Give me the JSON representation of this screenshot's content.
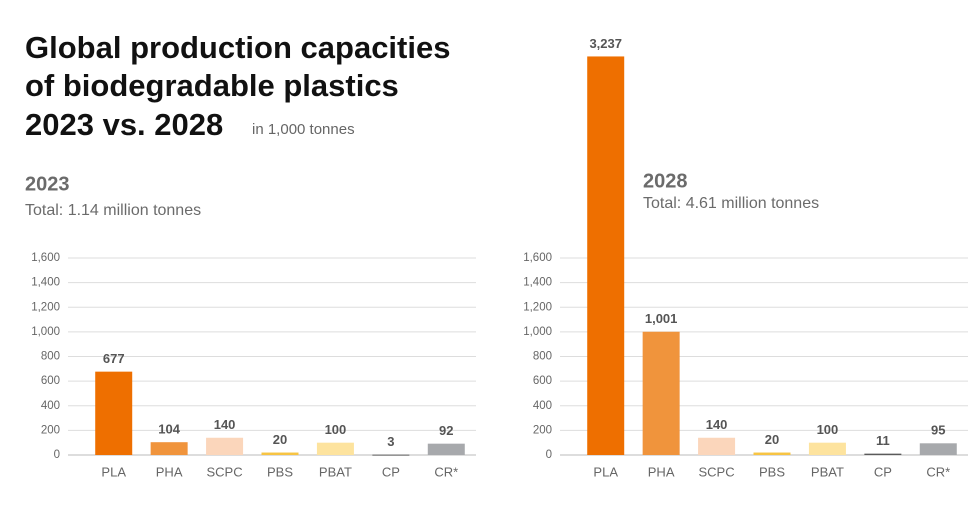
{
  "title": [
    "Global production capacities",
    "of biodegradable plastics",
    "2023 vs. 2028"
  ],
  "unit_note": "in 1,000 tonnes",
  "chart_data": [
    {
      "type": "bar",
      "title": "2023",
      "subtitle": "Total: 1.14 million tonnes",
      "categories": [
        "PLA",
        "PHA",
        "SCPC",
        "PBS",
        "PBAT",
        "CP",
        "CR*"
      ],
      "values": [
        677,
        104,
        140,
        20,
        100,
        3,
        92
      ],
      "value_labels": [
        "677",
        "104",
        "140",
        "20",
        "100",
        "3",
        "92"
      ],
      "colors": [
        "#ee6f00",
        "#f0943c",
        "#fbd6bb",
        "#f7c443",
        "#fde39e",
        "#5a5a5a",
        "#a7a9ac"
      ],
      "ylim": [
        0,
        1600
      ],
      "yticks": [
        0,
        200,
        400,
        600,
        800,
        {
          "value": 1000,
          "label": "1,000"
        },
        {
          "value": 1200,
          "label": "1,200"
        },
        {
          "value": 1400,
          "label": "1,400"
        },
        {
          "value": 1600,
          "label": "1,600"
        }
      ],
      "grid": true
    },
    {
      "type": "bar",
      "title": "2028",
      "subtitle": "Total: 4.61 million tonnes",
      "categories": [
        "PLA",
        "PHA",
        "SCPC",
        "PBS",
        "PBAT",
        "CP",
        "CR*"
      ],
      "values": [
        3237,
        1001,
        140,
        20,
        100,
        11,
        95
      ],
      "value_labels": [
        "3,237",
        "1,001",
        "140",
        "20",
        "100",
        "11",
        "95"
      ],
      "colors": [
        "#ee6f00",
        "#f0943c",
        "#fbd6bb",
        "#f7c443",
        "#fde39e",
        "#5a5a5a",
        "#a7a9ac"
      ],
      "ylim": [
        0,
        1600
      ],
      "yticks": [
        0,
        200,
        400,
        600,
        800,
        {
          "value": 1000,
          "label": "1,000"
        },
        {
          "value": 1200,
          "label": "1,200"
        },
        {
          "value": 1400,
          "label": "1,400"
        },
        {
          "value": 1600,
          "label": "1,600"
        }
      ],
      "grid": true
    }
  ]
}
